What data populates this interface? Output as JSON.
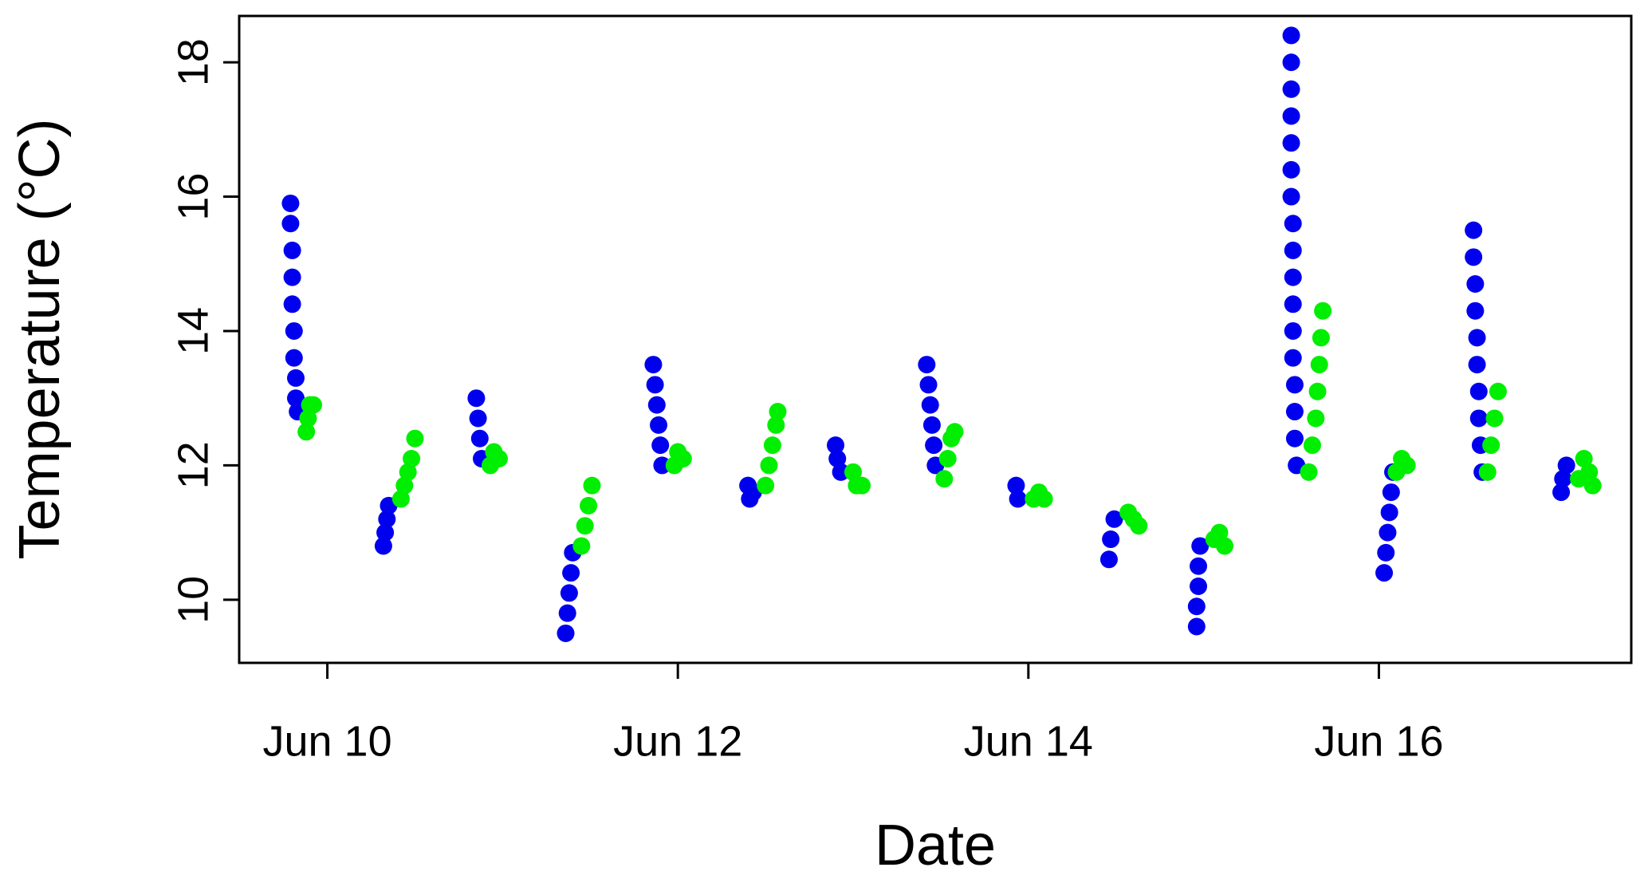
{
  "chart_data": {
    "type": "scatter",
    "x_label": "Date",
    "y_label": "Temperature (°C)",
    "xlim": [
      9.497,
      17.44
    ],
    "ylim": [
      9.06,
      18.69
    ],
    "xticks": [
      {
        "value": 10,
        "label": "Jun 10"
      },
      {
        "value": 12,
        "label": "Jun 12"
      },
      {
        "value": 14,
        "label": "Jun 14"
      },
      {
        "value": 16,
        "label": "Jun 16"
      }
    ],
    "yticks": [
      10,
      12,
      14,
      16,
      18
    ],
    "series": [
      {
        "color": "#0000ee",
        "x": [
          9.79,
          9.79,
          9.8,
          9.8,
          9.8,
          9.81,
          9.81,
          9.82,
          9.82,
          9.83,
          10.32,
          10.33,
          10.34,
          10.35,
          10.85,
          10.86,
          10.87,
          10.88,
          11.36,
          11.37,
          11.38,
          11.39,
          11.4,
          11.86,
          11.87,
          11.88,
          11.89,
          11.9,
          11.91,
          12.4,
          12.41,
          12.43,
          12.9,
          12.91,
          12.93,
          13.42,
          13.43,
          13.44,
          13.45,
          13.46,
          13.47,
          13.93,
          13.94,
          14.46,
          14.47,
          14.49,
          14.96,
          14.96,
          14.97,
          14.97,
          14.98,
          15.5,
          15.5,
          15.5,
          15.5,
          15.5,
          15.5,
          15.5,
          15.51,
          15.51,
          15.51,
          15.51,
          15.51,
          15.51,
          15.52,
          15.52,
          15.52,
          15.53,
          16.03,
          16.04,
          16.05,
          16.06,
          16.07,
          16.08,
          16.54,
          16.54,
          16.55,
          16.55,
          16.56,
          16.56,
          16.57,
          16.57,
          16.58,
          16.59,
          17.04,
          17.05,
          17.07
        ],
        "values": [
          15.9,
          15.6,
          15.2,
          14.8,
          14.4,
          14.0,
          13.6,
          13.3,
          13.0,
          12.8,
          10.8,
          11.0,
          11.2,
          11.4,
          13.0,
          12.7,
          12.4,
          12.1,
          9.5,
          9.8,
          10.1,
          10.4,
          10.7,
          13.5,
          13.2,
          12.9,
          12.6,
          12.3,
          12.0,
          11.7,
          11.5,
          11.6,
          12.3,
          12.1,
          11.9,
          13.5,
          13.2,
          12.9,
          12.6,
          12.3,
          12.0,
          11.7,
          11.5,
          10.6,
          10.9,
          11.2,
          9.6,
          9.9,
          10.2,
          10.5,
          10.8,
          18.4,
          18.0,
          17.6,
          17.2,
          16.8,
          16.4,
          16.0,
          15.6,
          15.2,
          14.8,
          14.4,
          14.0,
          13.6,
          13.2,
          12.8,
          12.4,
          12.0,
          10.4,
          10.7,
          11.0,
          11.3,
          11.6,
          11.9,
          15.5,
          15.1,
          14.7,
          14.3,
          13.9,
          13.5,
          13.1,
          12.7,
          12.3,
          11.9,
          11.6,
          11.8,
          12.0
        ]
      },
      {
        "color": "#00ee00",
        "x": [
          9.88,
          9.89,
          9.9,
          9.92,
          10.42,
          10.44,
          10.46,
          10.48,
          10.5,
          10.93,
          10.95,
          10.98,
          11.45,
          11.47,
          11.49,
          11.51,
          11.98,
          12.0,
          12.03,
          12.5,
          12.52,
          12.54,
          12.56,
          12.57,
          13.0,
          13.02,
          13.05,
          13.52,
          13.54,
          13.56,
          13.58,
          14.03,
          14.06,
          14.09,
          14.57,
          14.6,
          14.63,
          15.06,
          15.09,
          15.12,
          15.6,
          15.62,
          15.64,
          15.65,
          15.66,
          15.67,
          15.68,
          16.1,
          16.13,
          16.16,
          16.62,
          16.64,
          16.66,
          16.68,
          17.14,
          17.17,
          17.2,
          17.22
        ],
        "values": [
          12.5,
          12.7,
          12.9,
          12.9,
          11.5,
          11.7,
          11.9,
          12.1,
          12.4,
          12.0,
          12.2,
          12.1,
          10.8,
          11.1,
          11.4,
          11.7,
          12.0,
          12.2,
          12.1,
          11.7,
          12.0,
          12.3,
          12.6,
          12.8,
          11.9,
          11.7,
          11.7,
          11.8,
          12.1,
          12.4,
          12.5,
          11.5,
          11.6,
          11.5,
          11.3,
          11.2,
          11.1,
          10.9,
          11.0,
          10.8,
          11.9,
          12.3,
          12.7,
          13.1,
          13.5,
          13.9,
          14.3,
          11.9,
          12.1,
          12.0,
          11.9,
          12.3,
          12.7,
          13.1,
          11.8,
          12.1,
          11.9,
          11.7
        ]
      }
    ]
  }
}
